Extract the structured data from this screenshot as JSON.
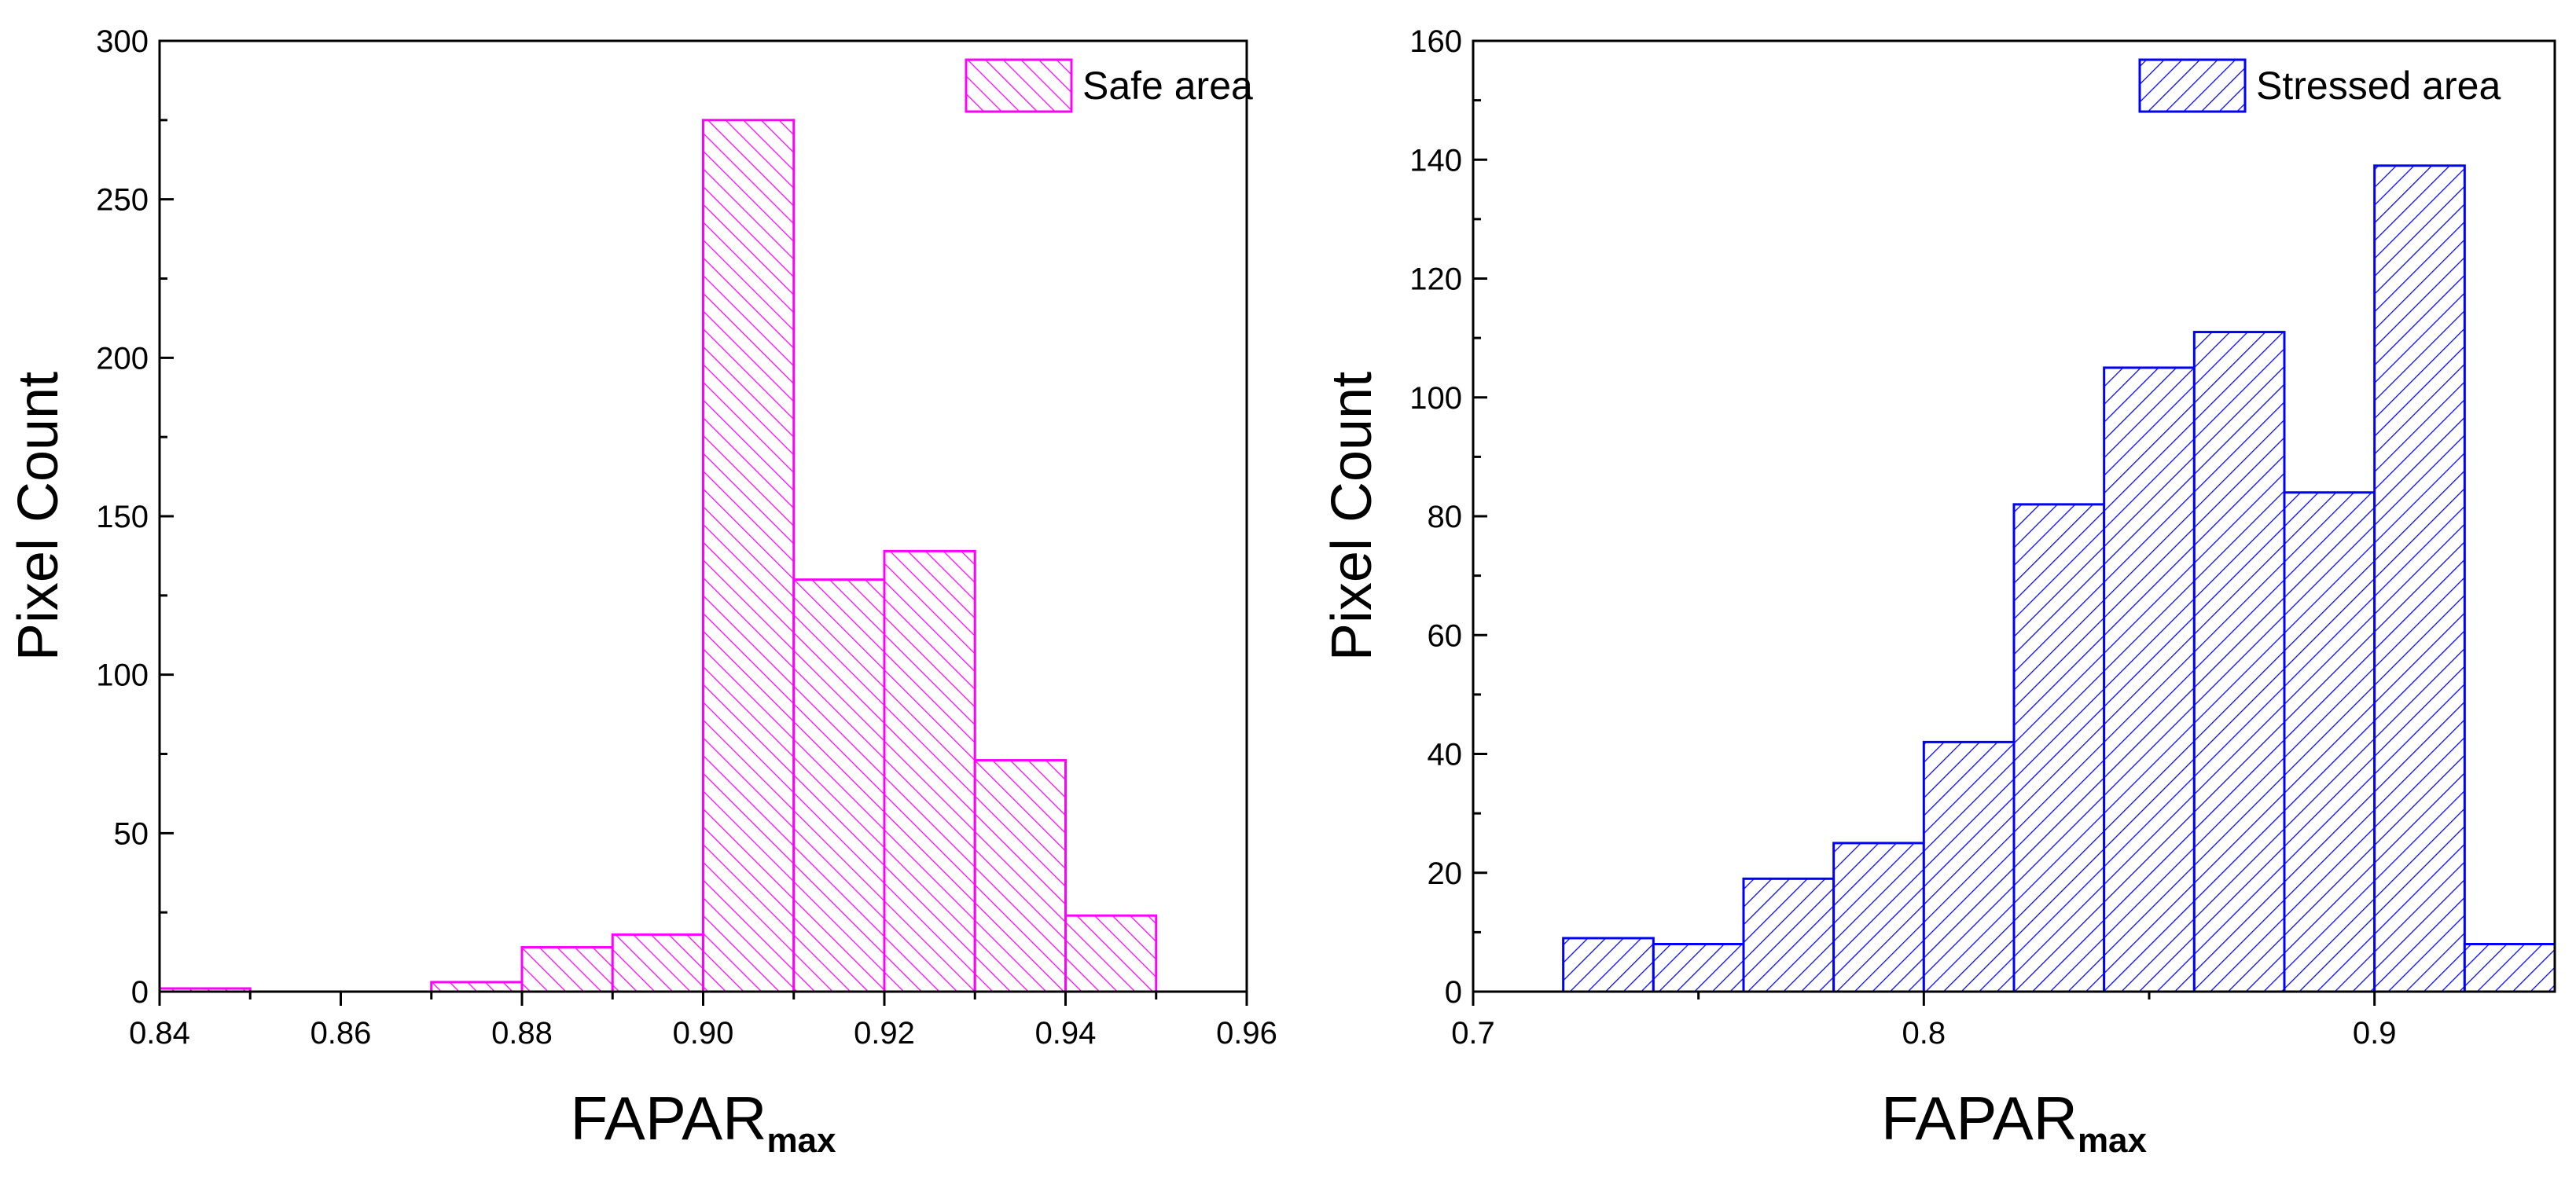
{
  "chart_data": [
    {
      "type": "bar",
      "title": "",
      "xlabel": "FAPAR",
      "xlabel_sub": "max",
      "ylabel": "Pixel Count",
      "xlim": [
        0.84,
        0.96
      ],
      "ylim": [
        0,
        300
      ],
      "xticks": [
        0.84,
        0.86,
        0.88,
        0.9,
        0.92,
        0.94,
        0.96
      ],
      "xtick_labels": [
        "0.84",
        "0.86",
        "0.88",
        "0.90",
        "0.92",
        "0.94",
        "0.96"
      ],
      "yticks": [
        0,
        50,
        100,
        150,
        200,
        250,
        300
      ],
      "ytick_labels": [
        "0",
        "50",
        "100",
        "150",
        "200",
        "250",
        "300"
      ],
      "bin_width": 0.01,
      "bins": [
        {
          "start": 0.84,
          "end": 0.85,
          "count": 1
        },
        {
          "start": 0.87,
          "end": 0.88,
          "count": 3
        },
        {
          "start": 0.88,
          "end": 0.89,
          "count": 14
        },
        {
          "start": 0.89,
          "end": 0.9,
          "count": 18
        },
        {
          "start": 0.9,
          "end": 0.91,
          "count": 275
        },
        {
          "start": 0.91,
          "end": 0.92,
          "count": 130
        },
        {
          "start": 0.92,
          "end": 0.93,
          "count": 139
        },
        {
          "start": 0.93,
          "end": 0.94,
          "count": 73
        },
        {
          "start": 0.94,
          "end": 0.95,
          "count": 24
        }
      ],
      "series": [
        {
          "name": "Safe area",
          "color": "#ff00ff",
          "hatch": "forward-diagonal"
        }
      ],
      "legend": "top-right"
    },
    {
      "type": "bar",
      "title": "",
      "xlabel": "FAPAR",
      "xlabel_sub": "max",
      "ylabel": "Pixel Count",
      "xlim": [
        0.7,
        0.94
      ],
      "ylim": [
        0,
        160
      ],
      "xticks": [
        0.7,
        0.8,
        0.9
      ],
      "xtick_labels": [
        "0.7",
        "0.8",
        "0.9"
      ],
      "xticks_minor": [
        0.75,
        0.85
      ],
      "yticks": [
        0,
        20,
        40,
        60,
        80,
        100,
        120,
        140,
        160
      ],
      "ytick_labels": [
        "0",
        "20",
        "40",
        "60",
        "80",
        "100",
        "120",
        "140",
        "160"
      ],
      "bin_width": 0.02,
      "bins": [
        {
          "start": 0.72,
          "end": 0.74,
          "count": 9
        },
        {
          "start": 0.74,
          "end": 0.76,
          "count": 8
        },
        {
          "start": 0.76,
          "end": 0.78,
          "count": 19
        },
        {
          "start": 0.78,
          "end": 0.8,
          "count": 25
        },
        {
          "start": 0.8,
          "end": 0.82,
          "count": 42
        },
        {
          "start": 0.82,
          "end": 0.84,
          "count": 82
        },
        {
          "start": 0.84,
          "end": 0.86,
          "count": 105
        },
        {
          "start": 0.86,
          "end": 0.88,
          "count": 111
        },
        {
          "start": 0.88,
          "end": 0.9,
          "count": 84
        },
        {
          "start": 0.9,
          "end": 0.92,
          "count": 139
        },
        {
          "start": 0.92,
          "end": 0.94,
          "count": 8
        }
      ],
      "series": [
        {
          "name": "Stressed area",
          "color": "#0000ff",
          "hatch": "backward-diagonal"
        }
      ],
      "legend": "top-right"
    }
  ]
}
